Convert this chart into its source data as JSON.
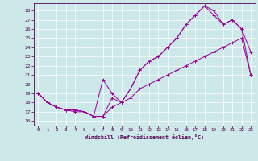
{
  "xlabel": "Windchill (Refroidissement éolien,°C)",
  "bg_color": "#cce8e8",
  "line_color": "#990099",
  "xlim": [
    -0.5,
    23.5
  ],
  "ylim": [
    15.5,
    28.8
  ],
  "xticks": [
    0,
    1,
    2,
    3,
    4,
    5,
    6,
    7,
    8,
    9,
    10,
    11,
    12,
    13,
    14,
    15,
    16,
    17,
    18,
    19,
    20,
    21,
    22,
    23
  ],
  "yticks": [
    16,
    17,
    18,
    19,
    20,
    21,
    22,
    23,
    24,
    25,
    26,
    27,
    28
  ],
  "curve1_x": [
    0,
    1,
    2,
    3,
    4,
    5,
    6,
    7,
    8,
    9,
    10,
    11,
    12,
    13,
    14,
    15,
    16,
    17,
    18,
    19,
    20,
    21,
    22,
    23
  ],
  "curve1_y": [
    19.0,
    18.0,
    17.5,
    17.2,
    17.2,
    17.0,
    16.5,
    16.5,
    18.5,
    18.0,
    19.5,
    21.5,
    22.5,
    23.0,
    24.0,
    25.0,
    26.5,
    27.5,
    28.5,
    28.0,
    26.5,
    27.0,
    26.0,
    23.5
  ],
  "curve2_x": [
    0,
    1,
    2,
    3,
    4,
    5,
    6,
    7,
    8,
    9,
    10,
    11,
    12,
    13,
    14,
    15,
    16,
    17,
    18,
    19,
    20,
    21,
    22,
    23
  ],
  "curve2_y": [
    19.0,
    18.0,
    17.5,
    17.2,
    17.2,
    17.0,
    16.5,
    20.5,
    19.0,
    18.0,
    19.5,
    21.5,
    22.5,
    23.0,
    24.0,
    25.0,
    26.5,
    27.5,
    28.5,
    27.5,
    26.5,
    27.0,
    26.0,
    21.0
  ],
  "curve3_x": [
    0,
    1,
    2,
    3,
    4,
    5,
    6,
    7,
    8,
    9,
    10,
    11,
    12,
    13,
    14,
    15,
    16,
    17,
    18,
    19,
    20,
    21,
    22,
    23
  ],
  "curve3_y": [
    19.0,
    18.0,
    17.5,
    17.2,
    17.0,
    17.0,
    16.5,
    16.5,
    17.5,
    18.0,
    18.5,
    19.5,
    20.0,
    20.5,
    21.0,
    21.5,
    22.0,
    22.5,
    23.0,
    23.5,
    24.0,
    24.5,
    25.0,
    21.0
  ],
  "figw": 3.2,
  "figh": 2.0,
  "dpi": 100
}
